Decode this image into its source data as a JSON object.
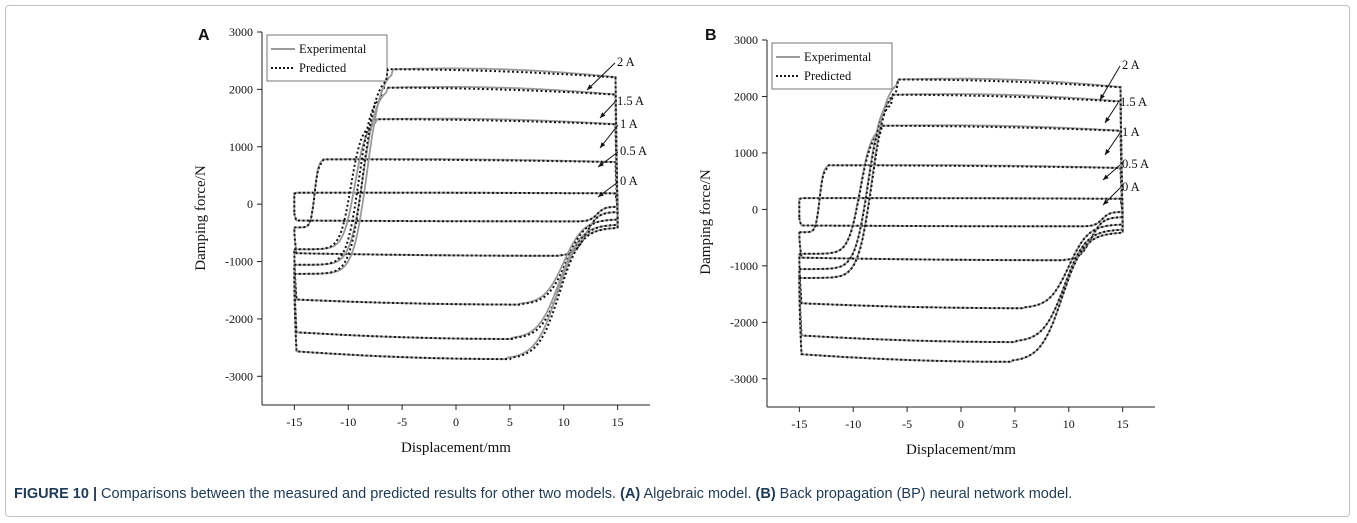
{
  "caption": {
    "figure_label": "FIGURE 10 |",
    "text": " Comparisons between the measured and predicted results for other two models. ",
    "a_label": "(A)",
    "a_text": " Algebraic model. ",
    "b_label": "(B)",
    "b_text": " Back propagation (BP) neural network model."
  },
  "chart_data": [
    {
      "type": "line",
      "panel_label": "A",
      "xlabel": "Displacement/mm",
      "ylabel": "Damping force/N",
      "xlim": [
        -18,
        18
      ],
      "ylim": [
        -3500,
        3000
      ],
      "xticks": [
        -15,
        -10,
        -5,
        0,
        5,
        10,
        15
      ],
      "yticks": [
        -3000,
        -2000,
        -1000,
        0,
        1000,
        2000,
        3000
      ],
      "legend": {
        "position": "top-left",
        "entries": [
          "Experimental",
          "Predicted"
        ]
      },
      "series_styles": {
        "Experimental": "#9a9a9a",
        "Predicted": "#111111"
      },
      "annotations": [
        "2 A",
        "1.5 A",
        "1 A",
        "0.5 A",
        "0 A"
      ],
      "loops": [
        {
          "current": "0 A",
          "upper_force": 200,
          "lower_force": -300,
          "jump_x": -15,
          "experimental_jump_x": -15
        },
        {
          "current": "0.5 A",
          "upper_force": 780,
          "lower_force": -900,
          "jump_x": -12.5,
          "experimental_jump_x": -12.5
        },
        {
          "current": "1 A",
          "upper_force": 1480,
          "lower_force": -1750,
          "jump_x": -8,
          "experimental_jump_x": -7.5
        },
        {
          "current": "1.5 A",
          "upper_force": 2030,
          "lower_force": -2350,
          "jump_x": -7,
          "experimental_jump_x": -6.5
        },
        {
          "current": "2 A",
          "upper_force": 2350,
          "lower_force": -2700,
          "jump_x": -6.5,
          "experimental_jump_x": -6
        }
      ]
    },
    {
      "type": "line",
      "panel_label": "B",
      "xlabel": "Displacement/mm",
      "ylabel": "Damping force/N",
      "xlim": [
        -18,
        18
      ],
      "ylim": [
        -3500,
        3000
      ],
      "xticks": [
        -15,
        -10,
        -5,
        0,
        5,
        10,
        15
      ],
      "yticks": [
        -3000,
        -2000,
        -1000,
        0,
        1000,
        2000,
        3000
      ],
      "legend": {
        "position": "top-left",
        "entries": [
          "Experimental",
          "Predicted"
        ]
      },
      "series_styles": {
        "Experimental": "#9a9a9a",
        "Predicted": "#111111"
      },
      "annotations": [
        "2 A",
        "1.5 A",
        "1 A",
        "0.5 A",
        "0 A"
      ],
      "loops": [
        {
          "current": "0 A",
          "upper_force": 200,
          "lower_force": -300,
          "jump_x": -15,
          "experimental_jump_x": -15
        },
        {
          "current": "0.5 A",
          "upper_force": 780,
          "lower_force": -900,
          "jump_x": -12.5,
          "experimental_jump_x": -12.5
        },
        {
          "current": "1 A",
          "upper_force": 1480,
          "lower_force": -1750,
          "jump_x": -7.5,
          "experimental_jump_x": -7.5
        },
        {
          "current": "1.5 A",
          "upper_force": 2030,
          "lower_force": -2350,
          "jump_x": -6.5,
          "experimental_jump_x": -6.5
        },
        {
          "current": "2 A",
          "upper_force": 2300,
          "lower_force": -2700,
          "jump_x": -6,
          "experimental_jump_x": -6
        }
      ]
    }
  ]
}
